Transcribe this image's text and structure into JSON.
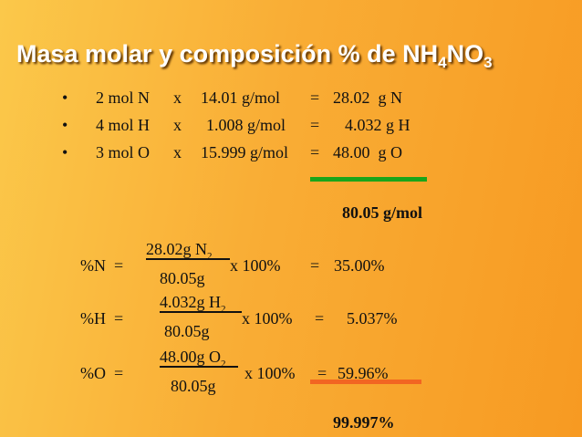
{
  "title": [
    "Masa molar y composición % de NH",
    "4",
    "NO",
    "3"
  ],
  "bullets": [
    [
      "•",
      "2 mol N",
      "x",
      "14.01 g/mol",
      "=",
      "28.02  g N"
    ],
    [
      "•",
      "4 mol H",
      "x",
      "1.008 g/mol",
      "=",
      "4.032 g H"
    ],
    [
      "•",
      "3 mol O",
      "x",
      "15.999 g/mol",
      "=",
      "48.00  g O"
    ]
  ],
  "molar_total": "80.05 g/mol",
  "percents": [
    {
      "label": "%N  =",
      "numerator": "28.02g N",
      "subscript": "2",
      "denominator": "80.05g",
      "factor": "x 100%",
      "equals": "=",
      "result": "35.00%"
    },
    {
      "label": "%H  =",
      "numerator": "4.032g H",
      "subscript": "2",
      "denominator": "80.05g",
      "factor": "x 100%",
      "equals": "=",
      "result": "5.037%"
    },
    {
      "label": "%O  =",
      "numerator": "48.00g O",
      "subscript": "2",
      "denominator": "80.05g",
      "factor": "x 100%",
      "equals": "=",
      "result": "59.96%"
    }
  ],
  "percent_total": "99.997%"
}
